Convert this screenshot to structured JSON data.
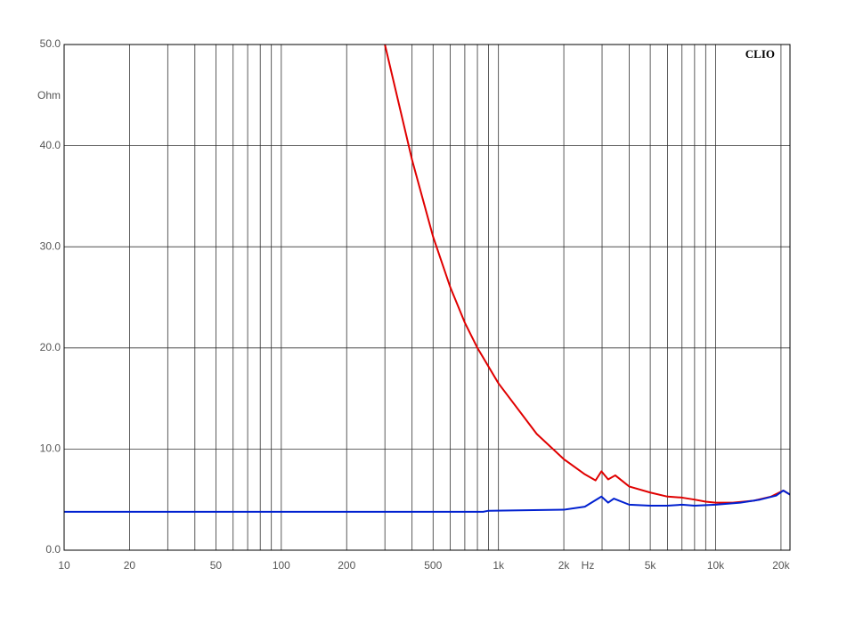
{
  "chart_data": {
    "type": "line",
    "brand": "CLIO",
    "y_label": "Ohm",
    "x_label": "Hz",
    "xscale": "log",
    "grid": true,
    "xlim": [
      10,
      22000
    ],
    "ylim": [
      0,
      50
    ],
    "yticks": [
      {
        "value": 0,
        "label": "0.0"
      },
      {
        "value": 10,
        "label": "10.0"
      },
      {
        "value": 20,
        "label": "20.0"
      },
      {
        "value": 30,
        "label": "30.0"
      },
      {
        "value": 40,
        "label": "40.0"
      },
      {
        "value": 50,
        "label": "50.0"
      }
    ],
    "xticks": [
      10,
      20,
      {
        "value": 30,
        "label": null
      },
      {
        "value": 40,
        "label": null
      },
      50,
      {
        "value": 60,
        "label": null
      },
      {
        "value": 70,
        "label": null
      },
      {
        "value": 80,
        "label": null
      },
      {
        "value": 90,
        "label": null
      },
      100,
      200,
      {
        "value": 300,
        "label": null
      },
      {
        "value": 400,
        "label": null
      },
      500,
      {
        "value": 600,
        "label": null
      },
      {
        "value": 700,
        "label": null
      },
      {
        "value": 800,
        "label": null
      },
      {
        "value": 900,
        "label": null
      },
      {
        "value": 1000,
        "label": "1k"
      },
      {
        "value": 2000,
        "label": "2k"
      },
      {
        "value": 3000,
        "label": null
      },
      {
        "value": 4000,
        "label": null
      },
      {
        "value": 5000,
        "label": "5k"
      },
      {
        "value": 6000,
        "label": null
      },
      {
        "value": 7000,
        "label": null
      },
      {
        "value": 8000,
        "label": null
      },
      {
        "value": 9000,
        "label": null
      },
      {
        "value": 10000,
        "label": "10k"
      },
      {
        "value": 20000,
        "label": "20k"
      }
    ],
    "series": [
      {
        "color": "#e00000",
        "x": [
          300,
          400,
          500,
          600,
          700,
          800,
          1000,
          1500,
          2000,
          2500,
          2800,
          2980,
          3200,
          3450,
          4000,
          5000,
          6000,
          7000,
          8000,
          9000,
          10000,
          12000,
          15000,
          18000,
          20500,
          22000
        ],
        "values": [
          50,
          38.6,
          31,
          26,
          22.5,
          20,
          16.5,
          11.5,
          9,
          7.5,
          6.9,
          7.8,
          7.0,
          7.4,
          6.3,
          5.7,
          5.3,
          5.2,
          5.0,
          4.8,
          4.7,
          4.7,
          4.9,
          5.3,
          5.9,
          5.5
        ]
      },
      {
        "color": "#0020d0",
        "x": [
          10,
          100,
          850,
          900,
          2000,
          2500,
          2980,
          3200,
          3400,
          4000,
          5000,
          6000,
          7000,
          8000,
          10000,
          13000,
          16000,
          19000,
          20500,
          22000
        ],
        "values": [
          3.8,
          3.8,
          3.8,
          3.9,
          4.0,
          4.3,
          5.3,
          4.7,
          5.1,
          4.5,
          4.4,
          4.4,
          4.5,
          4.4,
          4.5,
          4.7,
          5.0,
          5.4,
          5.9,
          5.5
        ]
      }
    ]
  }
}
